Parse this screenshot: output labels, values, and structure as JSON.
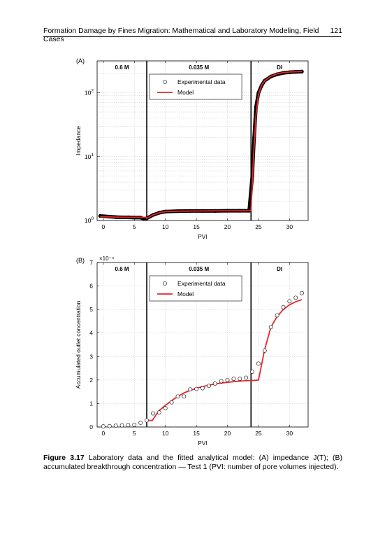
{
  "header": {
    "running_title": "Formation Damage by Fines Migration: Mathematical and Laboratory Modeling, Field Cases",
    "page_number": "121"
  },
  "caption": {
    "label": "Figure 3.17",
    "text": "Laboratory data and the fitted analytical model: (A) impedance J(T); (B) accumulated breakthrough concentration — Test 1 (PVI: number of pore volumes injected)."
  },
  "colors": {
    "model": "#e8262a",
    "data": "#000000"
  },
  "chart_data": [
    {
      "panel": "(A)",
      "type": "scatter",
      "xlabel": "PVI",
      "ylabel": "Impedance",
      "xlim": [
        -1,
        33
      ],
      "ylim_log10": [
        0,
        2.5
      ],
      "y_scale": "log",
      "xticks": [
        "0",
        "5",
        "10",
        "15",
        "20",
        "25",
        "30"
      ],
      "yticks": [
        "10^0",
        "10^1",
        "10^2"
      ],
      "grid": true,
      "legend": {
        "position": "top-center",
        "entries": [
          "Experimental data",
          "Model"
        ]
      },
      "regions": [
        {
          "label": "0.6 M",
          "x_range": [
            -1,
            7
          ]
        },
        {
          "label": "0.035 M",
          "x_range": [
            7,
            23.8
          ]
        },
        {
          "label": "DI",
          "x_range": [
            23.8,
            33
          ]
        }
      ],
      "dividers_x": [
        7,
        23.8
      ],
      "series": [
        {
          "name": "Experimental data",
          "style": "markers",
          "x": [
            -0.5,
            1,
            2,
            3,
            4,
            5,
            6,
            6.5,
            7,
            8,
            9,
            10,
            12,
            14,
            16,
            18,
            20,
            22,
            23.5,
            24,
            24.3,
            24.6,
            25,
            25.5,
            26,
            27,
            28,
            29,
            30,
            31,
            32
          ],
          "y": [
            1.18,
            1.15,
            1.13,
            1.12,
            1.12,
            1.11,
            1.11,
            1.06,
            1.08,
            1.22,
            1.32,
            1.38,
            1.4,
            1.41,
            1.41,
            1.41,
            1.42,
            1.42,
            1.42,
            5,
            20,
            60,
            100,
            130,
            155,
            180,
            195,
            205,
            210,
            213,
            215
          ]
        },
        {
          "name": "Model",
          "style": "line",
          "x": [
            -0.5,
            2,
            5,
            6.9,
            7,
            8,
            9,
            10,
            12,
            16,
            20,
            23.7,
            23.8,
            24.2,
            24.6,
            25,
            25.5,
            26,
            27,
            28,
            29,
            30,
            31,
            32
          ],
          "y": [
            1.15,
            1.13,
            1.12,
            1.12,
            1.08,
            1.22,
            1.32,
            1.38,
            1.4,
            1.41,
            1.42,
            1.42,
            1.42,
            10,
            45,
            95,
            130,
            155,
            182,
            198,
            207,
            212,
            214,
            216
          ]
        }
      ]
    },
    {
      "panel": "(B)",
      "type": "scatter",
      "xlabel": "PVI",
      "ylabel": "Accumulated outlet concentration",
      "y_multiplier": "×10⁻⁴",
      "xlim": [
        -1,
        33
      ],
      "ylim": [
        0,
        7
      ],
      "xticks": [
        "0",
        "5",
        "10",
        "15",
        "20",
        "25",
        "30"
      ],
      "yticks": [
        "0",
        "1",
        "2",
        "3",
        "4",
        "5",
        "6",
        "7"
      ],
      "grid": true,
      "legend": {
        "position": "top-center",
        "entries": [
          "Experimental data",
          "Model"
        ]
      },
      "regions": [
        {
          "label": "0.6 M",
          "x_range": [
            -1,
            7
          ]
        },
        {
          "label": "0.035 M",
          "x_range": [
            7,
            23.8
          ]
        },
        {
          "label": "DI",
          "x_range": [
            23.8,
            33
          ]
        }
      ],
      "dividers_x": [
        7,
        23.8
      ],
      "series": [
        {
          "name": "Experimental data",
          "style": "markers",
          "x": [
            0,
            1,
            2,
            3,
            4,
            5,
            6,
            7,
            8,
            9,
            10,
            11,
            12,
            13,
            14,
            15,
            16,
            17,
            18,
            19,
            20,
            21,
            22,
            23,
            24,
            25,
            26,
            27,
            28,
            29,
            30,
            31,
            32
          ],
          "y": [
            0.03,
            0.04,
            0.06,
            0.07,
            0.08,
            0.09,
            0.18,
            0.28,
            0.58,
            0.62,
            0.8,
            1.05,
            1.3,
            1.3,
            1.6,
            1.62,
            1.65,
            1.75,
            1.85,
            1.95,
            2.0,
            2.05,
            2.05,
            2.1,
            2.35,
            2.7,
            3.25,
            4.25,
            4.75,
            5.1,
            5.35,
            5.5,
            5.7
          ]
        },
        {
          "name": "Model",
          "style": "line",
          "x": [
            7,
            7.9,
            8.5,
            9,
            10,
            11,
            12,
            13,
            14,
            15,
            16,
            17,
            18,
            19,
            20,
            21,
            22,
            23,
            23.8,
            24.2,
            25,
            26,
            27,
            28,
            29,
            30,
            31,
            32
          ],
          "y": [
            0.28,
            0.28,
            0.52,
            0.7,
            0.92,
            1.12,
            1.3,
            1.45,
            1.56,
            1.65,
            1.72,
            1.78,
            1.83,
            1.87,
            1.9,
            1.93,
            1.95,
            1.97,
            1.98,
            1.98,
            2.0,
            3.3,
            4.25,
            4.7,
            5.0,
            5.2,
            5.33,
            5.42
          ]
        }
      ]
    }
  ]
}
